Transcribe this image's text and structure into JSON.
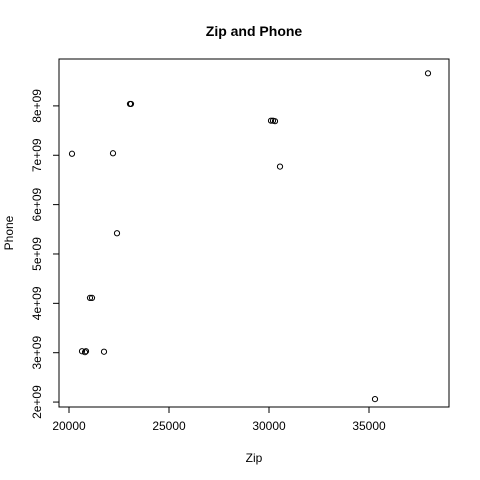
{
  "chart_data": {
    "type": "scatter",
    "title": "Zip and Phone",
    "xlabel": "Zip",
    "ylabel": "Phone",
    "xlim": [
      19500,
      39000
    ],
    "ylim": [
      1900000000,
      8950000000
    ],
    "x_ticks": [
      20000,
      25000,
      30000,
      35000
    ],
    "x_tick_labels": [
      "20000",
      "25000",
      "30000",
      "35000"
    ],
    "y_ticks": [
      2000000000,
      3000000000,
      4000000000,
      5000000000,
      6000000000,
      7000000000,
      8000000000
    ],
    "y_tick_labels": [
      "2e+09",
      "3e+09",
      "4e+09",
      "5e+09",
      "6e+09",
      "7e+09",
      "8e+09"
    ],
    "grid": false,
    "point_color": "#000000",
    "points": [
      {
        "x": 20150,
        "y": 7030000000
      },
      {
        "x": 20650,
        "y": 3030000000
      },
      {
        "x": 20800,
        "y": 3010000000
      },
      {
        "x": 20850,
        "y": 3030000000
      },
      {
        "x": 21050,
        "y": 4110000000
      },
      {
        "x": 21150,
        "y": 4110000000
      },
      {
        "x": 21750,
        "y": 3020000000
      },
      {
        "x": 22200,
        "y": 7040000000
      },
      {
        "x": 22400,
        "y": 5420000000
      },
      {
        "x": 23050,
        "y": 8040000000
      },
      {
        "x": 23100,
        "y": 8040000000
      },
      {
        "x": 30100,
        "y": 7700000000
      },
      {
        "x": 30200,
        "y": 7700000000
      },
      {
        "x": 30300,
        "y": 7690000000
      },
      {
        "x": 30550,
        "y": 6770000000
      },
      {
        "x": 35300,
        "y": 2060000000
      },
      {
        "x": 37950,
        "y": 8660000000
      }
    ]
  }
}
